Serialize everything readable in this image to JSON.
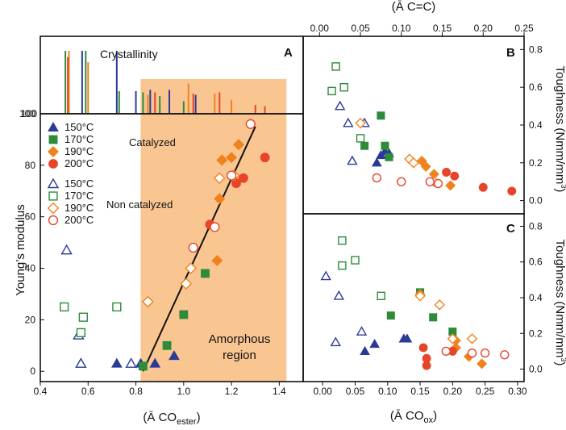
{
  "colors": {
    "c150": "#2b3a97",
    "c170": "#2e8b3a",
    "c190": "#f0821e",
    "c200": "#e8442a",
    "shade": "#f9c691"
  },
  "annotations": {
    "crystallinity": "Crystallinity",
    "amorphous_line1": "Amorphous",
    "amorphous_line2": "region",
    "catalyzed": "Catalyzed",
    "non_catalyzed": "Non catalyzed",
    "panel_a": "A",
    "panel_b": "B",
    "panel_c": "C"
  },
  "chart_data": [
    {
      "id": "A",
      "type": "scatter",
      "title": "",
      "xlabel": "(Ā CO",
      "xlabel_sub": "ester",
      "xlabel_close": ")",
      "ylabel": "Young’s modulus",
      "xlim": [
        0.4,
        1.5
      ],
      "ylim": [
        -4,
        100
      ],
      "xticks": [
        "0.4",
        "0.6",
        "0.8",
        "1.0",
        "1.2",
        "1.4"
      ],
      "yticks": [
        "0",
        "20",
        "40",
        "60",
        "80",
        "100"
      ],
      "amorphous_region_x": [
        0.82,
        1.43
      ],
      "fit_line": [
        [
          0.83,
          0
        ],
        [
          1.3,
          95
        ]
      ],
      "legend": [
        {
          "label": "150°C",
          "group": "catalyzed",
          "temp": "c150",
          "marker": "triangle",
          "filled": true
        },
        {
          "label": "170°C",
          "group": "catalyzed",
          "temp": "c170",
          "marker": "square",
          "filled": true
        },
        {
          "label": "190°C",
          "group": "catalyzed",
          "temp": "c190",
          "marker": "diamond",
          "filled": true
        },
        {
          "label": "200°C",
          "group": "catalyzed",
          "temp": "c200",
          "marker": "circle",
          "filled": true
        },
        {
          "label": "150°C",
          "group": "non_catalyzed",
          "temp": "c150",
          "marker": "triangle",
          "filled": false
        },
        {
          "label": "170°C",
          "group": "non_catalyzed",
          "temp": "c170",
          "marker": "square",
          "filled": false
        },
        {
          "label": "190°C",
          "group": "non_catalyzed",
          "temp": "c190",
          "marker": "diamond",
          "filled": false
        },
        {
          "label": "200°C",
          "group": "non_catalyzed",
          "temp": "c200",
          "marker": "circle",
          "filled": false
        }
      ],
      "series": [
        {
          "name": "150°C catalyzed",
          "temp": "c150",
          "marker": "triangle",
          "filled": true,
          "points": [
            [
              0.72,
              3
            ],
            [
              0.82,
              3
            ],
            [
              0.88,
              3
            ],
            [
              0.96,
              6
            ]
          ]
        },
        {
          "name": "170°C catalyzed",
          "temp": "c170",
          "marker": "square",
          "filled": true,
          "points": [
            [
              0.83,
              2
            ],
            [
              0.93,
              10
            ],
            [
              1.0,
              22
            ],
            [
              1.09,
              38
            ]
          ]
        },
        {
          "name": "190°C catalyzed",
          "temp": "c190",
          "marker": "diamond",
          "filled": true,
          "points": [
            [
              1.14,
              43
            ],
            [
              1.15,
              67
            ],
            [
              1.16,
              82
            ],
            [
              1.2,
              83
            ],
            [
              1.23,
              88
            ]
          ]
        },
        {
          "name": "200°C catalyzed",
          "temp": "c200",
          "marker": "circle",
          "filled": true,
          "points": [
            [
              1.11,
              57
            ],
            [
              1.22,
              73
            ],
            [
              1.25,
              75
            ],
            [
              1.34,
              83
            ]
          ]
        },
        {
          "name": "150°C non catalyzed",
          "temp": "c150",
          "marker": "triangle",
          "filled": false,
          "points": [
            [
              0.51,
              47
            ],
            [
              0.56,
              14
            ],
            [
              0.57,
              3
            ],
            [
              0.78,
              3
            ]
          ]
        },
        {
          "name": "170°C non catalyzed",
          "temp": "c170",
          "marker": "square",
          "filled": false,
          "points": [
            [
              0.5,
              25
            ],
            [
              0.58,
              21
            ],
            [
              0.57,
              15
            ],
            [
              0.72,
              25
            ]
          ]
        },
        {
          "name": "190°C non catalyzed",
          "temp": "c190",
          "marker": "diamond",
          "filled": false,
          "points": [
            [
              0.85,
              27
            ],
            [
              1.01,
              34
            ],
            [
              1.03,
              40
            ],
            [
              1.15,
              75
            ],
            [
              1.21,
              76
            ]
          ]
        },
        {
          "name": "200°C non catalyzed",
          "temp": "c200",
          "marker": "circle",
          "filled": false,
          "points": [
            [
              1.04,
              48
            ],
            [
              1.13,
              56
            ],
            [
              1.2,
              76
            ],
            [
              1.28,
              96
            ]
          ]
        }
      ]
    },
    {
      "id": "A-top",
      "type": "bar",
      "title": "Crystallinity",
      "xlim": [
        0.4,
        1.5
      ],
      "series": [
        {
          "name": "150°C",
          "temp": "c150",
          "x": [
            0.575,
            0.72,
            0.8,
            0.86,
            0.94,
            1.05
          ],
          "heights": [
            1.0,
            1.0,
            0.36,
            0.38,
            0.38,
            0.3
          ]
        },
        {
          "name": "170°C",
          "temp": "c170",
          "x": [
            0.505,
            0.59,
            0.73,
            0.83,
            0.9,
            1.0
          ],
          "heights": [
            1.0,
            1.0,
            0.36,
            0.34,
            0.28,
            0.2
          ]
        },
        {
          "name": "190°C",
          "temp": "c190",
          "x": [
            0.52,
            0.6,
            0.85,
            1.02,
            1.13,
            1.2
          ],
          "heights": [
            1.0,
            0.82,
            0.3,
            0.48,
            0.32,
            0.22
          ]
        },
        {
          "name": "200°C",
          "temp": "c200",
          "x": [
            0.515,
            0.88,
            1.04,
            1.15,
            1.3,
            1.34
          ],
          "heights": [
            0.9,
            0.34,
            0.32,
            0.34,
            0.14,
            0.12
          ]
        }
      ]
    },
    {
      "id": "B",
      "type": "scatter",
      "xlabel": "(Ā C=C)",
      "ylabel": "Toughness (Nmm/mm",
      "ylabel_sup": "3",
      "ylabel_close": ")",
      "xlim": [
        -0.02,
        0.25
      ],
      "ylim": [
        -0.07,
        0.87
      ],
      "xticks": [
        "0.00",
        "0.05",
        "0.10",
        "0.15",
        "0.20",
        "0.25"
      ],
      "yticks": [
        "0.0",
        "0.2",
        "0.4",
        "0.6",
        "0.8"
      ],
      "series": [
        {
          "name": "150°C catalyzed",
          "temp": "c150",
          "marker": "triangle",
          "filled": true,
          "points": [
            [
              0.07,
              0.2
            ],
            [
              0.075,
              0.24
            ],
            [
              0.08,
              0.26
            ],
            [
              0.085,
              0.25
            ]
          ]
        },
        {
          "name": "170°C catalyzed",
          "temp": "c170",
          "marker": "square",
          "filled": true,
          "points": [
            [
              0.055,
              0.29
            ],
            [
              0.075,
              0.45
            ],
            [
              0.08,
              0.29
            ],
            [
              0.085,
              0.23
            ]
          ]
        },
        {
          "name": "190°C catalyzed",
          "temp": "c190",
          "marker": "diamond",
          "filled": true,
          "points": [
            [
              0.125,
              0.21
            ],
            [
              0.13,
              0.18
            ],
            [
              0.14,
              0.14
            ],
            [
              0.16,
              0.08
            ]
          ]
        },
        {
          "name": "200°C catalyzed",
          "temp": "c200",
          "marker": "circle",
          "filled": true,
          "points": [
            [
              0.155,
              0.15
            ],
            [
              0.165,
              0.13
            ],
            [
              0.2,
              0.07
            ],
            [
              0.235,
              0.05
            ]
          ]
        },
        {
          "name": "150°C non catalyzed",
          "temp": "c150",
          "marker": "triangle",
          "filled": false,
          "points": [
            [
              0.025,
              0.5
            ],
            [
              0.035,
              0.41
            ],
            [
              0.04,
              0.21
            ],
            [
              0.055,
              0.41
            ]
          ]
        },
        {
          "name": "170°C non catalyzed",
          "temp": "c170",
          "marker": "square",
          "filled": false,
          "points": [
            [
              0.015,
              0.58
            ],
            [
              0.02,
              0.71
            ],
            [
              0.03,
              0.6
            ],
            [
              0.05,
              0.33
            ]
          ]
        },
        {
          "name": "190°C non catalyzed",
          "temp": "c190",
          "marker": "diamond",
          "filled": false,
          "points": [
            [
              0.05,
              0.41
            ],
            [
              0.11,
              0.22
            ],
            [
              0.115,
              0.2
            ],
            [
              0.14,
              0.1
            ]
          ]
        },
        {
          "name": "200°C non catalyzed",
          "temp": "c200",
          "marker": "circle",
          "filled": false,
          "points": [
            [
              0.07,
              0.12
            ],
            [
              0.1,
              0.1
            ],
            [
              0.135,
              0.1
            ],
            [
              0.145,
              0.09
            ]
          ]
        }
      ]
    },
    {
      "id": "C",
      "type": "scatter",
      "xlabel": "(Ā CO",
      "xlabel_sub": "ox",
      "xlabel_close": ")",
      "ylabel": "Toughness (Nmm/mm",
      "ylabel_sup": "3",
      "ylabel_close": ")",
      "xlim": [
        -0.03,
        0.31
      ],
      "ylim": [
        -0.07,
        0.87
      ],
      "xticks": [
        "0.00",
        "0.05",
        "0.10",
        "0.15",
        "0.20",
        "0.25",
        "0.30"
      ],
      "yticks": [
        "0.0",
        "0.2",
        "0.4",
        "0.6",
        "0.8"
      ],
      "series": [
        {
          "name": "150°C catalyzed",
          "temp": "c150",
          "marker": "triangle",
          "filled": true,
          "points": [
            [
              0.065,
              0.1
            ],
            [
              0.08,
              0.14
            ],
            [
              0.125,
              0.17
            ],
            [
              0.13,
              0.17
            ]
          ]
        },
        {
          "name": "170°C catalyzed",
          "temp": "c170",
          "marker": "square",
          "filled": true,
          "points": [
            [
              0.105,
              0.3
            ],
            [
              0.15,
              0.43
            ],
            [
              0.17,
              0.29
            ],
            [
              0.2,
              0.21
            ]
          ]
        },
        {
          "name": "190°C catalyzed",
          "temp": "c190",
          "marker": "diamond",
          "filled": true,
          "points": [
            [
              0.15,
              0.42
            ],
            [
              0.205,
              0.16
            ],
            [
              0.205,
              0.12
            ],
            [
              0.225,
              0.07
            ],
            [
              0.245,
              0.03
            ]
          ]
        },
        {
          "name": "200°C catalyzed",
          "temp": "c200",
          "marker": "circle",
          "filled": true,
          "points": [
            [
              0.155,
              0.12
            ],
            [
              0.16,
              0.06
            ],
            [
              0.16,
              0.02
            ],
            [
              0.2,
              0.1
            ]
          ]
        },
        {
          "name": "150°C non catalyzed",
          "temp": "c150",
          "marker": "triangle",
          "filled": false,
          "points": [
            [
              0.005,
              0.52
            ],
            [
              0.02,
              0.15
            ],
            [
              0.025,
              0.41
            ],
            [
              0.06,
              0.21
            ]
          ]
        },
        {
          "name": "170°C non catalyzed",
          "temp": "c170",
          "marker": "square",
          "filled": false,
          "points": [
            [
              0.03,
              0.72
            ],
            [
              0.03,
              0.58
            ],
            [
              0.05,
              0.61
            ],
            [
              0.09,
              0.41
            ]
          ]
        },
        {
          "name": "190°C non catalyzed",
          "temp": "c190",
          "marker": "diamond",
          "filled": false,
          "points": [
            [
              0.15,
              0.41
            ],
            [
              0.18,
              0.36
            ],
            [
              0.2,
              0.17
            ],
            [
              0.23,
              0.17
            ]
          ]
        },
        {
          "name": "200°C non catalyzed",
          "temp": "c200",
          "marker": "circle",
          "filled": false,
          "points": [
            [
              0.19,
              0.1
            ],
            [
              0.23,
              0.09
            ],
            [
              0.25,
              0.09
            ],
            [
              0.28,
              0.08
            ]
          ]
        }
      ]
    }
  ]
}
